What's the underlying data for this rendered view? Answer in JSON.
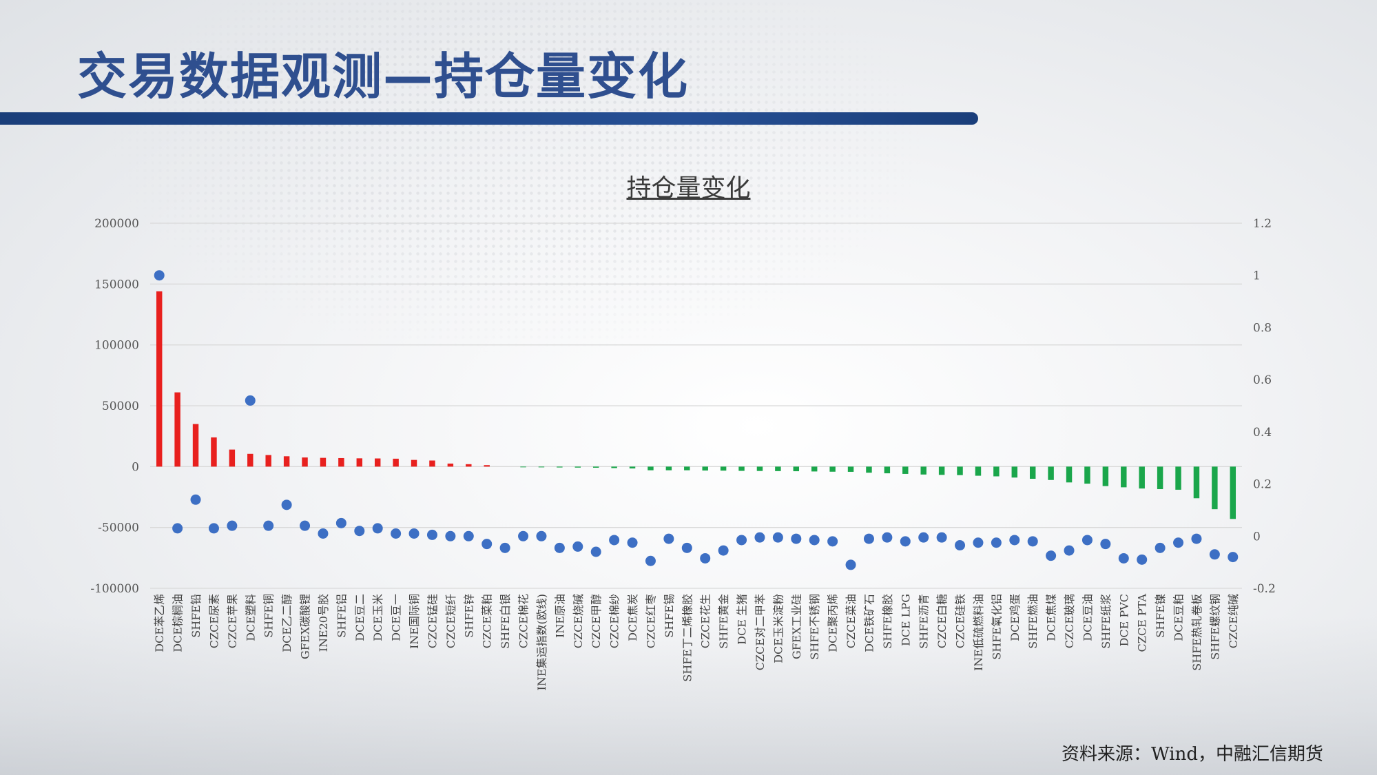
{
  "slide_title": "交易数据观测—持仓量变化",
  "source_note": "资料来源：Wind，中融汇信期货",
  "colors": {
    "positive_bar": "#e8201e",
    "negative_bar": "#1aa64b",
    "dot": "#3d6fc4",
    "grid": "#d9d9d9",
    "title_bar": "#1f4587"
  },
  "chart_data": {
    "type": "bar",
    "title": "持仓量变化",
    "grid": true,
    "y_left": {
      "ylim": [
        -100000,
        200000
      ],
      "ticks": [
        200000,
        150000,
        100000,
        50000,
        0,
        -50000,
        -100000
      ]
    },
    "y_right": {
      "ylim": [
        -0.2,
        1.2
      ],
      "ticks": [
        "1.2",
        "1",
        "0.8",
        "0.6",
        "0.4",
        "0.2",
        "0",
        "-0.2"
      ]
    },
    "categories": [
      "DCE苯乙烯",
      "DCE棕榈油",
      "SHFE铅",
      "CZCE尿素",
      "CZCE苹果",
      "DCE塑料",
      "SHFE铜",
      "DCE乙二醇",
      "GFEX碳酸锂",
      "INE20号胶",
      "SHFE铝",
      "DCE豆二",
      "DCE玉米",
      "DCE豆一",
      "INE国际铜",
      "CZCE锰硅",
      "CZCE短纤",
      "SHFE锌",
      "CZCE菜粕",
      "SHFE白银",
      "CZCE棉花",
      "INE集运指数(欧线)",
      "INE原油",
      "CZCE烧碱",
      "CZCE甲醇",
      "CZCE棉纱",
      "DCE焦炭",
      "CZCE红枣",
      "SHFE锡",
      "SHFE丁二烯橡胶",
      "CZCE花生",
      "SHFE黄金",
      "DCE 生猪",
      "CZCE对二甲苯",
      "DCE玉米淀粉",
      "GFEX工业硅",
      "SHFE不锈钢",
      "DCE聚丙烯",
      "CZCE菜油",
      "DCE铁矿石",
      "SHFE橡胶",
      "DCE LPG",
      "SHFE沥青",
      "CZCE白糖",
      "CZCE硅铁",
      "INE低硫燃料油",
      "SHFE氧化铝",
      "DCE鸡蛋",
      "SHFE燃油",
      "DCE焦煤",
      "CZCE玻璃",
      "DCE豆油",
      "SHFE纸浆",
      "DCE PVC",
      "CZCE PTA",
      "SHFE镍",
      "DCE豆粕",
      "SHFE热轧卷板",
      "SHFE螺纹钢",
      "CZCE纯碱"
    ],
    "series": [
      {
        "axis": "left",
        "values": [
          144000,
          61000,
          35000,
          24000,
          14000,
          10500,
          9500,
          8500,
          7500,
          7200,
          7000,
          6800,
          6700,
          6500,
          5500,
          5000,
          2500,
          2000,
          1200,
          0,
          -500,
          -600,
          -700,
          -800,
          -900,
          -1200,
          -1500,
          -3000,
          -3000,
          -3000,
          -3200,
          -3300,
          -3500,
          -3600,
          -3700,
          -3800,
          -4000,
          -4200,
          -4300,
          -5000,
          -5500,
          -6000,
          -6500,
          -6800,
          -7000,
          -7500,
          -8000,
          -9000,
          -10000,
          -11000,
          -13000,
          -14000,
          -16000,
          -17000,
          -18000,
          -18500,
          -19000,
          -26000,
          -35000,
          -43000
        ]
      },
      {
        "axis": "right",
        "values": [
          1.0,
          0.03,
          0.14,
          0.03,
          0.04,
          0.52,
          0.04,
          0.12,
          0.04,
          0.01,
          0.05,
          0.02,
          0.03,
          0.01,
          0.01,
          0.005,
          0.0,
          0.0,
          -0.03,
          -0.045,
          0.0,
          0.0,
          -0.045,
          -0.04,
          -0.06,
          -0.015,
          -0.025,
          -0.095,
          -0.01,
          -0.045,
          -0.085,
          -0.055,
          -0.015,
          -0.005,
          -0.005,
          -0.01,
          -0.015,
          -0.02,
          -0.11,
          -0.01,
          -0.005,
          -0.02,
          -0.005,
          -0.005,
          -0.035,
          -0.025,
          -0.025,
          -0.015,
          -0.02,
          -0.075,
          -0.055,
          -0.015,
          -0.03,
          -0.085,
          -0.09,
          -0.045,
          -0.025,
          -0.01,
          -0.07,
          -0.08
        ]
      }
    ]
  }
}
